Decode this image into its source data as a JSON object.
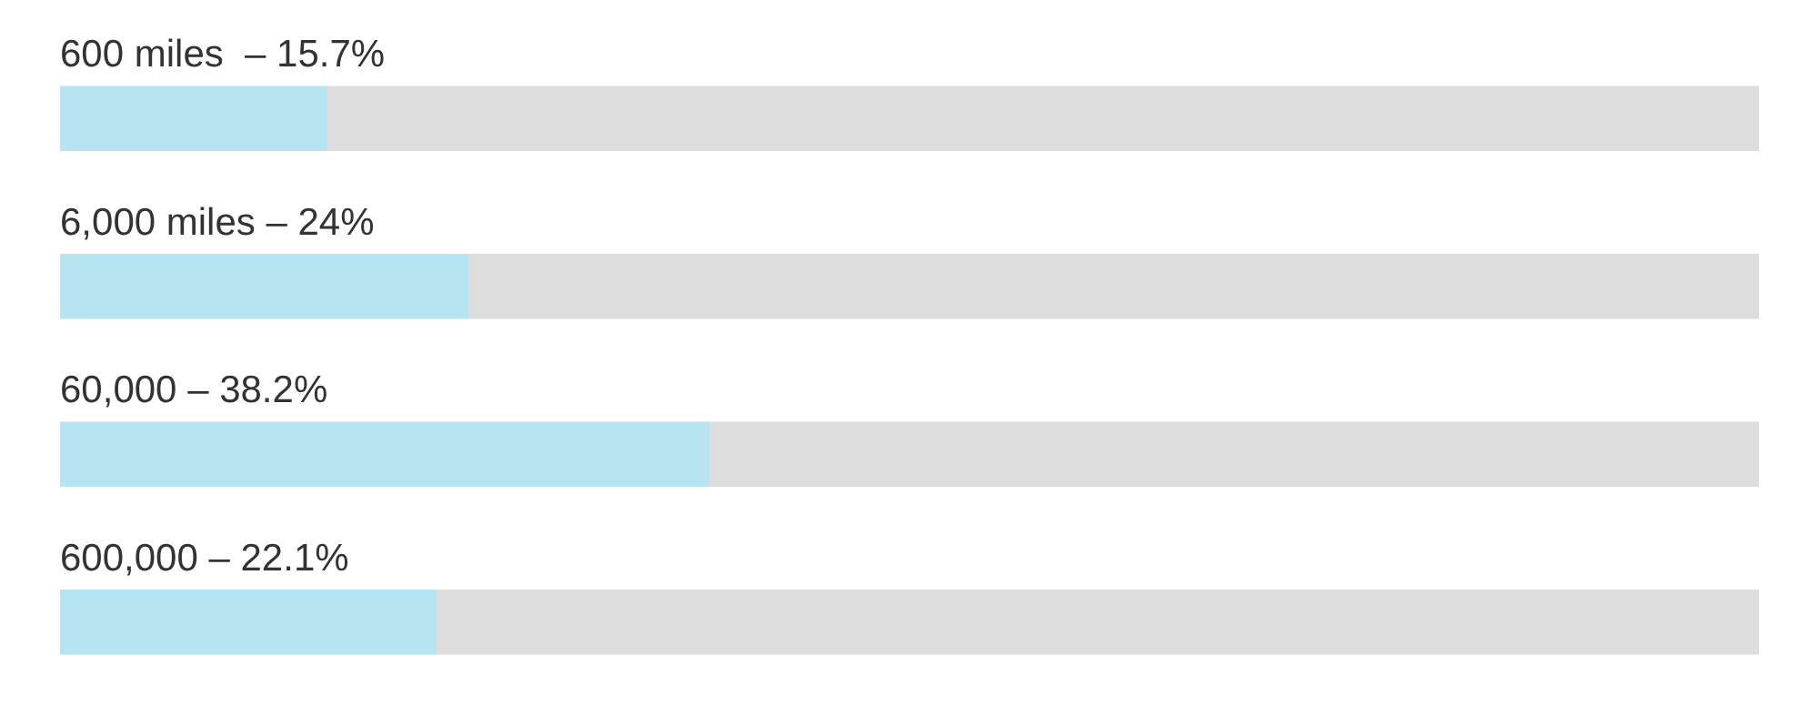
{
  "chart_data": {
    "type": "bar",
    "orientation": "horizontal",
    "stacked": true,
    "categories": [
      "600 miles  –",
      "6,000 miles –",
      "60,000 –",
      "600,000 –"
    ],
    "series": [
      {
        "color": "#b6e4f0",
        "values": [
          15.7,
          24,
          38.2,
          22.1
        ],
        "value_labels": [
          "15.7%",
          "24%",
          "38.2%",
          "22.1%"
        ]
      },
      {
        "color": "#dddddd",
        "values": [
          84.3,
          76,
          61.8,
          77.9
        ]
      }
    ],
    "xlim": [
      0,
      100
    ],
    "tick_labels": false
  }
}
